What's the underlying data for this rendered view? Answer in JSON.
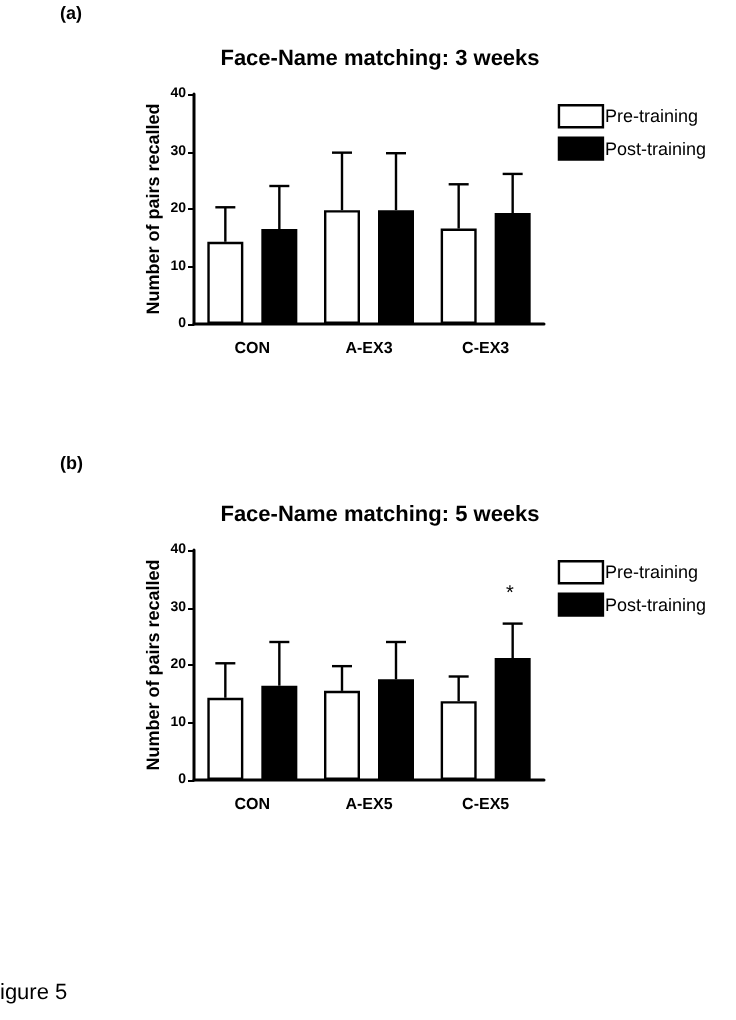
{
  "chart_data": [
    {
      "type": "bar",
      "title": "Face-Name matching: 3 weeks",
      "ylabel": "Number of pairs recalled",
      "annotations": [
        "(a)"
      ],
      "categories": [
        "CON",
        "A-EX3",
        "C-EX3"
      ],
      "series": [
        {
          "name": "Pre-training",
          "color": "#ffffff",
          "values": [
            14.3,
            19.8,
            16.6
          ],
          "errors": [
            [
              14.3,
              20.3
            ],
            [
              19.8,
              29.8
            ],
            [
              16.6,
              24.3
            ]
          ]
        },
        {
          "name": "Post-training",
          "color": "#000000",
          "values": [
            16.5,
            19.8,
            19.3
          ],
          "errors": [
            [
              16.5,
              24
            ],
            [
              19.8,
              29.7
            ],
            [
              19.3,
              26.1
            ]
          ]
        }
      ],
      "ylim": [
        0,
        40
      ],
      "yticks": [
        0,
        10,
        20,
        30,
        40
      ],
      "grid": false,
      "legend": "top right"
    },
    {
      "type": "bar",
      "title": "Face-Name matching: 5 weeks",
      "ylabel": "Number of pairs recalled",
      "annotations": [
        "(b)",
        "*",
        "igure 5"
      ],
      "categories": [
        "CON",
        "A-EX5",
        "C-EX5"
      ],
      "series": [
        {
          "name": "Pre-training",
          "color": "#ffffff",
          "values": [
            14.3,
            15.5,
            13.7
          ],
          "errors": [
            [
              14.3,
              20.3
            ],
            [
              15.5,
              19.8
            ],
            [
              13.7,
              18
            ]
          ]
        },
        {
          "name": "Post-training",
          "color": "#000000",
          "values": [
            16.4,
            17.5,
            21.2
          ],
          "errors": [
            [
              16.4,
              24
            ],
            [
              17.5,
              24
            ],
            [
              21.2,
              27.2
            ]
          ]
        }
      ],
      "ylim": [
        0,
        40
      ],
      "yticks": [
        0,
        10,
        20,
        30,
        40
      ],
      "grid": false,
      "legend": "top right"
    }
  ]
}
